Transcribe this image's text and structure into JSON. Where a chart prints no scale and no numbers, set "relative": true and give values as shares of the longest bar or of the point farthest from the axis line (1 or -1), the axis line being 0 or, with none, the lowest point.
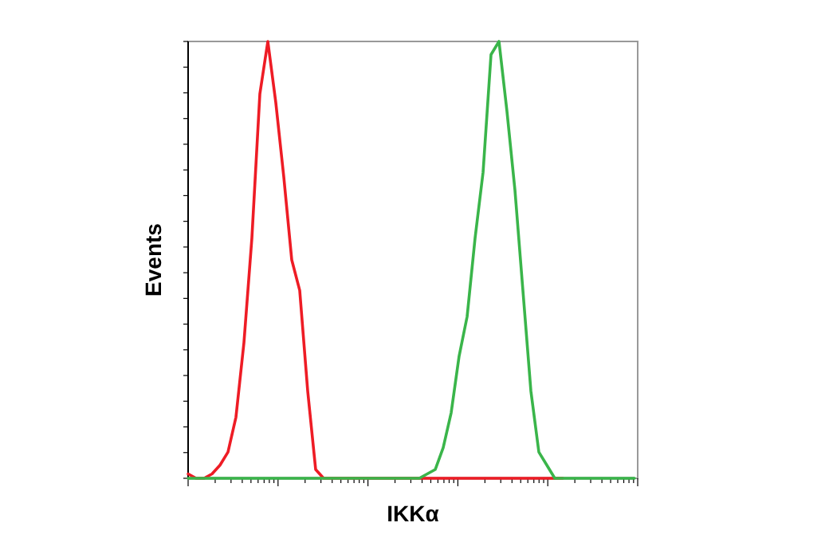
{
  "chart_data": {
    "type": "line",
    "xlabel": "IKKα",
    "ylabel": "Events",
    "relative": true,
    "tick_labels": false,
    "marker": "none",
    "line_style": "solid",
    "categories": [
      null,
      null,
      null,
      null,
      null,
      null,
      null,
      null,
      null,
      null,
      null,
      null,
      null,
      null,
      null,
      null,
      null,
      null,
      null,
      null,
      null,
      null,
      null,
      null,
      null,
      null,
      null,
      null,
      null,
      null,
      null,
      null,
      null,
      null,
      null,
      null,
      null,
      null,
      null,
      null,
      null,
      null,
      null,
      null,
      null,
      null,
      null,
      null,
      null,
      null,
      null,
      null,
      null,
      null,
      null,
      null,
      null
    ],
    "series": [
      {
        "color": "#ee1c25",
        "values": [
          0.01,
          0,
          0,
          0.01,
          0.03,
          0.06,
          0.14,
          0.31,
          0.55,
          0.88,
          1,
          0.86,
          0.69,
          0.5,
          0.43,
          0.2,
          0.02,
          0,
          0,
          0,
          0,
          0,
          0,
          0,
          0,
          0,
          0,
          0,
          0,
          0,
          0,
          0,
          0,
          0,
          0,
          0,
          0,
          0,
          0,
          0,
          0,
          0,
          0,
          0,
          0,
          0,
          0,
          0,
          null,
          null,
          null,
          null,
          null,
          null,
          null,
          null,
          null
        ]
      },
      {
        "color": "#3ab54a",
        "values": [
          0,
          0,
          0,
          0,
          0,
          0,
          0,
          0,
          0,
          0,
          0,
          0,
          0,
          0,
          0,
          0,
          0,
          0,
          0,
          0,
          0,
          0,
          0,
          0,
          0,
          0,
          0,
          0,
          0,
          0,
          0.01,
          0.02,
          0.07,
          0.15,
          0.28,
          0.37,
          0.55,
          0.7,
          0.97,
          1,
          0.84,
          0.66,
          0.43,
          0.2,
          0.06,
          0.03,
          0,
          0,
          0,
          0,
          0,
          0,
          0,
          0,
          0,
          0,
          0
        ]
      }
    ]
  }
}
